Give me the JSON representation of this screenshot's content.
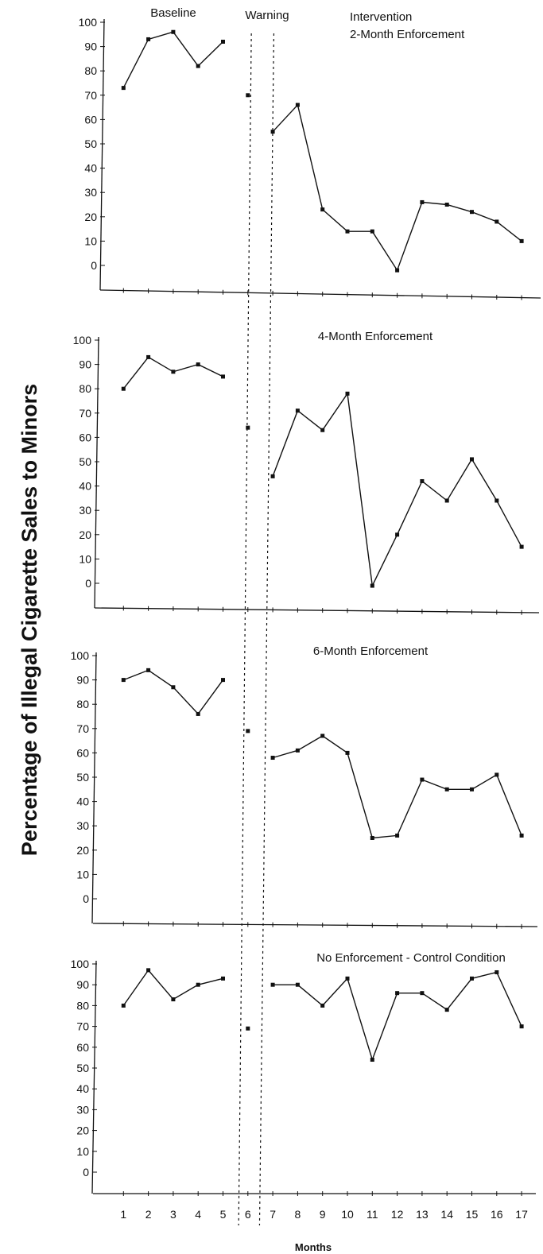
{
  "chart_data": {
    "type": "line",
    "ylabel": "Percentage of Illegal Cigarette Sales to Minors",
    "xlabel": "Months",
    "phase_labels": {
      "baseline": "Baseline",
      "warning": "Warning",
      "intervention": "Intervention"
    },
    "x_ticks": [
      "1",
      "2",
      "3",
      "4",
      "5",
      "6",
      "7",
      "8",
      "9",
      "10",
      "11",
      "12",
      "13",
      "14",
      "15",
      "16",
      "17"
    ],
    "y_ticks": [
      "100",
      "90",
      "80",
      "70",
      "60",
      "50",
      "40",
      "30",
      "20",
      "10",
      "0"
    ],
    "ylim": [
      0,
      100
    ],
    "xlim": [
      0,
      17
    ],
    "phase_boundaries": [
      5.5,
      6.5
    ],
    "grid": false,
    "panels": [
      {
        "title": "2-Month Enforcement",
        "baseline": [
          [
            1,
            73
          ],
          [
            2,
            93
          ],
          [
            3,
            96
          ],
          [
            4,
            82
          ],
          [
            5,
            92
          ]
        ],
        "warning": [
          [
            6,
            70
          ]
        ],
        "intervention": [
          [
            7,
            55
          ],
          [
            8,
            66
          ],
          [
            9,
            23
          ],
          [
            10,
            14
          ],
          [
            11,
            14
          ],
          [
            12,
            -2
          ],
          [
            13,
            26
          ],
          [
            14,
            25
          ],
          [
            15,
            22
          ],
          [
            16,
            18
          ],
          [
            17,
            10
          ]
        ]
      },
      {
        "title": "4-Month Enforcement",
        "baseline": [
          [
            1,
            80
          ],
          [
            2,
            93
          ],
          [
            3,
            87
          ],
          [
            4,
            90
          ],
          [
            5,
            85
          ]
        ],
        "warning": [
          [
            6,
            64
          ]
        ],
        "intervention": [
          [
            7,
            44
          ],
          [
            8,
            71
          ],
          [
            9,
            63
          ],
          [
            10,
            78
          ],
          [
            11,
            -1
          ],
          [
            12,
            20
          ],
          [
            13,
            42
          ],
          [
            14,
            34
          ],
          [
            15,
            51
          ],
          [
            16,
            34
          ],
          [
            17,
            15
          ]
        ]
      },
      {
        "title": "6-Month Enforcement",
        "baseline": [
          [
            1,
            90
          ],
          [
            2,
            94
          ],
          [
            3,
            87
          ],
          [
            4,
            76
          ],
          [
            5,
            90
          ]
        ],
        "warning": [
          [
            6,
            69
          ]
        ],
        "intervention": [
          [
            7,
            58
          ],
          [
            8,
            61
          ],
          [
            9,
            67
          ],
          [
            10,
            60
          ],
          [
            11,
            25
          ],
          [
            12,
            26
          ],
          [
            13,
            49
          ],
          [
            14,
            45
          ],
          [
            15,
            45
          ],
          [
            16,
            51
          ],
          [
            17,
            26
          ]
        ]
      },
      {
        "title": "No Enforcement - Control Condition",
        "baseline": [
          [
            1,
            80
          ],
          [
            2,
            97
          ],
          [
            3,
            83
          ],
          [
            4,
            90
          ],
          [
            5,
            93
          ]
        ],
        "warning": [
          [
            6,
            69
          ]
        ],
        "intervention": [
          [
            7,
            90
          ],
          [
            8,
            90
          ],
          [
            9,
            80
          ],
          [
            10,
            93
          ],
          [
            11,
            54
          ],
          [
            12,
            86
          ],
          [
            13,
            86
          ],
          [
            14,
            78
          ],
          [
            15,
            93
          ],
          [
            16,
            96
          ],
          [
            17,
            70
          ]
        ]
      }
    ]
  }
}
